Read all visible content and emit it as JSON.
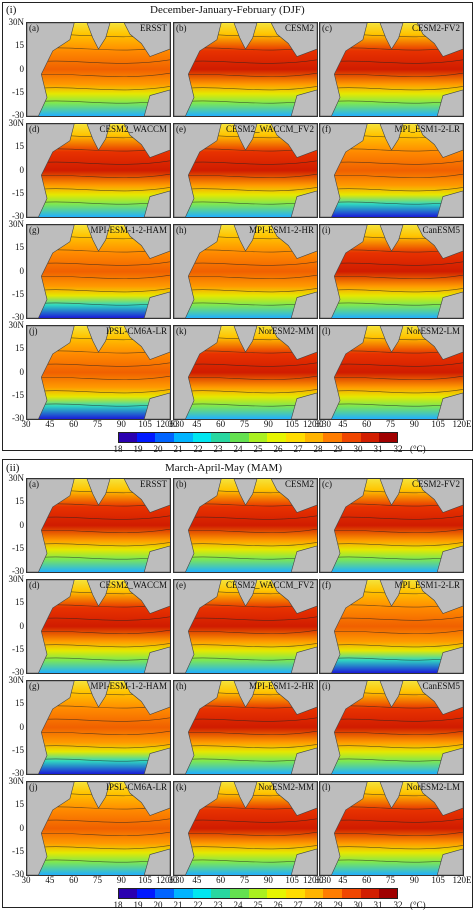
{
  "sections": [
    {
      "roman": "(i)",
      "season": "December-January-February (DJF)",
      "panels": [
        {
          "letter": "(a)",
          "model": "ERSST",
          "warm": 0.55,
          "cold": 0.35
        },
        {
          "letter": "(b)",
          "model": "CESM2",
          "warm": 0.75,
          "cold": 0.25
        },
        {
          "letter": "(c)",
          "model": "CESM2-FV2",
          "warm": 0.7,
          "cold": 0.3
        },
        {
          "letter": "(d)",
          "model": "CESM2_WACCM",
          "warm": 0.75,
          "cold": 0.25
        },
        {
          "letter": "(e)",
          "model": "CESM2_WACCM_FV2",
          "warm": 0.7,
          "cold": 0.3
        },
        {
          "letter": "(f)",
          "model": "MPI_ESM1-2-LR",
          "warm": 0.5,
          "cold": 0.55
        },
        {
          "letter": "(g)",
          "model": "MPI-ESM-1-2-HAM",
          "warm": 0.45,
          "cold": 0.6
        },
        {
          "letter": "(h)",
          "model": "MPI-ESM1-2-HR",
          "warm": 0.6,
          "cold": 0.35
        },
        {
          "letter": "(i)",
          "model": "CanESM5",
          "warm": 0.7,
          "cold": 0.3
        },
        {
          "letter": "(j)",
          "model": "IPSL-CM6A-LR",
          "warm": 0.45,
          "cold": 0.5
        },
        {
          "letter": "(k)",
          "model": "NorESM2-MM",
          "warm": 0.7,
          "cold": 0.3
        },
        {
          "letter": "(l)",
          "model": "NorESM2-LM",
          "warm": 0.7,
          "cold": 0.3
        }
      ]
    },
    {
      "roman": "(ii)",
      "season": "March-April-May (MAM)",
      "panels": [
        {
          "letter": "(a)",
          "model": "ERSST",
          "warm": 0.7,
          "cold": 0.3
        },
        {
          "letter": "(b)",
          "model": "CESM2",
          "warm": 0.85,
          "cold": 0.2
        },
        {
          "letter": "(c)",
          "model": "CESM2-FV2",
          "warm": 0.8,
          "cold": 0.25
        },
        {
          "letter": "(d)",
          "model": "CESM2_WACCM",
          "warm": 0.85,
          "cold": 0.2
        },
        {
          "letter": "(e)",
          "model": "CESM2_WACCM_FV2",
          "warm": 0.85,
          "cold": 0.2
        },
        {
          "letter": "(f)",
          "model": "MPI_ESM1-2-LR",
          "warm": 0.6,
          "cold": 0.45
        },
        {
          "letter": "(g)",
          "model": "MPI-ESM-1-2-HAM",
          "warm": 0.55,
          "cold": 0.5
        },
        {
          "letter": "(h)",
          "model": "MPI-ESM1-2-HR",
          "warm": 0.75,
          "cold": 0.3
        },
        {
          "letter": "(i)",
          "model": "CanESM5",
          "warm": 0.75,
          "cold": 0.3
        },
        {
          "letter": "(j)",
          "model": "IPSL-CM6A-LR",
          "warm": 0.6,
          "cold": 0.4
        },
        {
          "letter": "(k)",
          "model": "NorESM2-MM",
          "warm": 0.8,
          "cold": 0.25
        },
        {
          "letter": "(l)",
          "model": "NorESM2-LM",
          "warm": 0.8,
          "cold": 0.25
        }
      ]
    }
  ],
  "y_ticks": [
    "30N",
    "15",
    "0",
    "-15",
    "-30"
  ],
  "x_ticks_row": [
    "30",
    "45",
    "60",
    "75",
    "90",
    "105",
    "120E"
  ],
  "x_ticks_mid": [
    "30",
    "45",
    "60",
    "75",
    "90",
    "105",
    "120E30",
    "45",
    "60",
    "75",
    "90",
    "105",
    "120E30",
    "45",
    "60",
    "75",
    "90",
    "105",
    "120E"
  ],
  "colorbar": {
    "ticks": [
      "18",
      "19",
      "20",
      "21",
      "22",
      "23",
      "24",
      "25",
      "26",
      "27",
      "28",
      "29",
      "30",
      "31",
      "32"
    ],
    "unit": "(°C)",
    "colors": [
      "#2a00b0",
      "#0019ff",
      "#0064ff",
      "#00b4ff",
      "#00e6f0",
      "#28d7a0",
      "#64e150",
      "#aaf020",
      "#e6f500",
      "#ffdc00",
      "#ffb400",
      "#ff7d00",
      "#f04600",
      "#d21e00",
      "#a00000"
    ]
  },
  "chart_data": {
    "type": "heatmap",
    "title": "",
    "seasons": [
      "December-January-February (DJF)",
      "March-April-May (MAM)"
    ],
    "models": [
      "ERSST",
      "CESM2",
      "CESM2-FV2",
      "CESM2_WACCM",
      "CESM2_WACCM_FV2",
      "MPI_ESM1-2-LR",
      "MPI-ESM-1-2-HAM",
      "MPI-ESM1-2-HR",
      "CanESM5",
      "IPSL-CM6A-LR",
      "NorESM2-MM",
      "NorESM2-LM"
    ],
    "variable_unit": "°C",
    "color_range": [
      18,
      32
    ],
    "lon_range": [
      30,
      120
    ],
    "lat_range": [
      -30,
      30
    ]
  }
}
